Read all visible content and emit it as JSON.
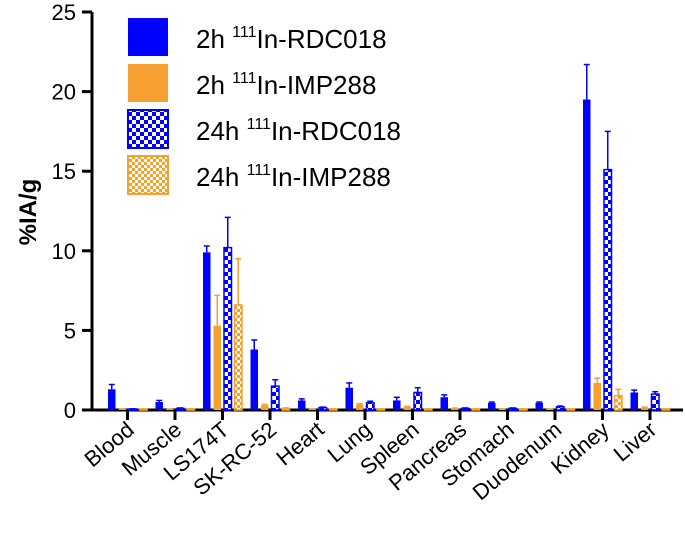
{
  "chart_data": {
    "type": "bar",
    "ylabel": "%IA/g",
    "xlabel": "",
    "title": "",
    "ylim": [
      0,
      25
    ],
    "yticks": [
      "0",
      "5",
      "10",
      "15",
      "20",
      "25"
    ],
    "categories": [
      "Blood",
      "Muscle",
      "LS174T",
      "SK-RC-52",
      "Heart",
      "Lung",
      "Spleen",
      "Pancreas",
      "Stomach",
      "Duodenum",
      "Kidney",
      "Liver"
    ],
    "legend_position": "top-left",
    "series": [
      {
        "name": "2h 111In-RDC018",
        "name_prefix": "2h ",
        "name_sup": "111",
        "name_suffix": "In-RDC018",
        "color": "#0000ff",
        "pattern": "solid",
        "values": [
          1.3,
          0.5,
          9.9,
          3.8,
          0.6,
          1.4,
          0.6,
          0.8,
          0.45,
          0.45,
          19.5,
          1.1
        ],
        "errors": [
          0.3,
          0.1,
          0.4,
          0.6,
          0.1,
          0.3,
          0.2,
          0.15,
          0.05,
          0.05,
          2.2,
          0.15
        ]
      },
      {
        "name": "2h 111In-IMP288",
        "name_prefix": "2h ",
        "name_sup": "111",
        "name_suffix": "In-IMP288",
        "color": "#f5a030",
        "pattern": "solid",
        "values": [
          0.05,
          0.05,
          5.3,
          0.3,
          0.05,
          0.35,
          0.2,
          0.1,
          0.05,
          0.05,
          1.7,
          0.15
        ],
        "errors": [
          0.02,
          0.02,
          1.9,
          0.05,
          0.02,
          0.05,
          0.03,
          0.02,
          0.02,
          0.02,
          0.3,
          0.03
        ]
      },
      {
        "name": "24h 111In-RDC018",
        "name_prefix": "24h ",
        "name_sup": "111",
        "name_suffix": "In-RDC018",
        "color": "#0000ff",
        "pattern": "checker",
        "values": [
          0.05,
          0.1,
          10.2,
          1.5,
          0.15,
          0.45,
          1.1,
          0.1,
          0.1,
          0.2,
          15.1,
          1.0
        ],
        "errors": [
          0.02,
          0.03,
          1.9,
          0.4,
          0.03,
          0.1,
          0.3,
          0.03,
          0.03,
          0.05,
          2.4,
          0.15
        ]
      },
      {
        "name": "24h 111In-IMP288",
        "name_prefix": "24h ",
        "name_sup": "111",
        "name_suffix": "In-IMP288",
        "color": "#f5a030",
        "pattern": "checker",
        "values": [
          0.05,
          0.05,
          6.6,
          0.1,
          0.05,
          0.05,
          0.05,
          0.05,
          0.05,
          0.05,
          0.9,
          0.05
        ],
        "errors": [
          0.02,
          0.02,
          2.9,
          0.03,
          0.02,
          0.02,
          0.02,
          0.02,
          0.02,
          0.02,
          0.4,
          0.02
        ]
      }
    ]
  }
}
